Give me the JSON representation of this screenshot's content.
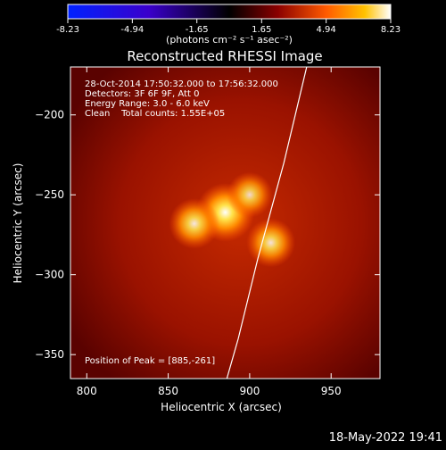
{
  "colorbar": {
    "ticks": [
      "-8.23",
      "-4.94",
      "-1.65",
      "1.65",
      "4.94",
      "8.23"
    ],
    "unit_label": "(photons cm⁻² s⁻¹ asec⁻²)"
  },
  "chart_data": {
    "type": "heatmap",
    "title": "Reconstructed RHESSI Image",
    "xlabel": "Heliocentric X (arcsec)",
    "ylabel": "Heliocentric Y (arcsec)",
    "xlim": [
      790,
      980
    ],
    "ylim": [
      -365,
      -170
    ],
    "xticks": [
      800,
      850,
      900,
      950
    ],
    "yticks": [
      -200,
      -250,
      -300,
      -350
    ],
    "colorbar_range": [
      -8.23,
      8.23
    ],
    "annotations": {
      "time": "28-Oct-2014 17:50:32.000 to 17:56:32.000",
      "detectors": "Detectors: 3F 6F 9F, Att 0",
      "energy": "Energy Range: 3.0 - 6.0 keV",
      "clean": "Clean    Total counts: 1.55E+05",
      "peak": "Position of Peak = [885,-261]"
    },
    "peak": [
      885,
      -261
    ],
    "sources": [
      {
        "x": 885,
        "y": -261,
        "intensity": 1.0
      },
      {
        "x": 866,
        "y": -268,
        "intensity": 0.75
      },
      {
        "x": 900,
        "y": -250,
        "intensity": 0.6
      },
      {
        "x": 913,
        "y": -280,
        "intensity": 0.7
      }
    ],
    "limb_curve": [
      [
        935,
        -170
      ],
      [
        921,
        -230
      ],
      [
        905,
        -290
      ],
      [
        893,
        -340
      ],
      [
        886,
        -365
      ]
    ]
  },
  "timestamp": "18-May-2022 19:41"
}
